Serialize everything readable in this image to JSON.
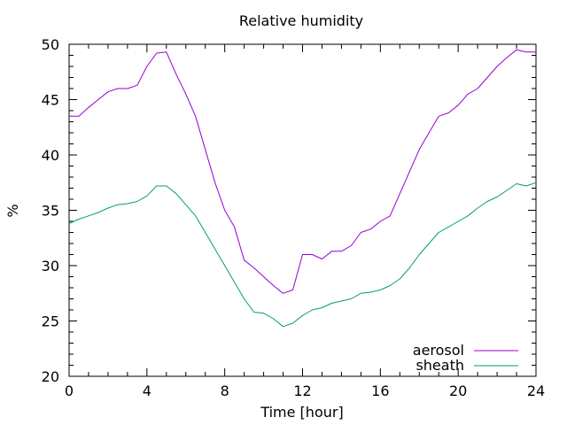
{
  "chart_data": {
    "type": "line",
    "title": "Relative humidity",
    "xlabel": "Time [hour]",
    "ylabel": "%",
    "xlim": [
      0,
      24
    ],
    "ylim": [
      20,
      50
    ],
    "xticks": [
      "0",
      "4",
      "8",
      "12",
      "16",
      "20",
      "24"
    ],
    "yticks": [
      "20",
      "25",
      "30",
      "35",
      "40",
      "45",
      "50"
    ],
    "grid": false,
    "legend_position": "bottom-right",
    "series": [
      {
        "name": "aerosol",
        "color": "#9400d3",
        "x": [
          0,
          0.5,
          1,
          1.5,
          2,
          2.5,
          3,
          3.5,
          4,
          4.5,
          5,
          5.5,
          6,
          6.5,
          7,
          7.5,
          8,
          8.5,
          9,
          9.5,
          10,
          10.5,
          11,
          11.5,
          12,
          12.5,
          13,
          13.5,
          14,
          14.5,
          15,
          15.5,
          16,
          16.5,
          17,
          17.5,
          18,
          18.5,
          19,
          19.5,
          20,
          20.5,
          21,
          21.5,
          22,
          22.5,
          23,
          23.5,
          24
        ],
        "y": [
          43.5,
          43.5,
          44.3,
          45.0,
          45.7,
          46.0,
          46.0,
          46.3,
          48.0,
          49.2,
          49.3,
          47.3,
          45.5,
          43.5,
          40.5,
          37.5,
          35.0,
          33.5,
          30.5,
          29.8,
          29.0,
          28.2,
          27.5,
          27.8,
          31.0,
          31.0,
          30.6,
          31.3,
          31.3,
          31.8,
          33.0,
          33.3,
          34.0,
          34.5,
          36.5,
          38.5,
          40.5,
          42.0,
          43.5,
          43.8,
          44.5,
          45.5,
          46.0,
          47.0,
          48.0,
          48.8,
          49.5,
          49.3,
          49.3
        ]
      },
      {
        "name": "sheath",
        "color": "#009e73",
        "x": [
          0,
          0.5,
          1,
          1.5,
          2,
          2.5,
          3,
          3.5,
          4,
          4.5,
          5,
          5.5,
          6,
          6.5,
          7,
          7.5,
          8,
          8.5,
          9,
          9.5,
          10,
          10.5,
          11,
          11.5,
          12,
          12.5,
          13,
          13.5,
          14,
          14.5,
          15,
          15.5,
          16,
          16.5,
          17,
          17.5,
          18,
          18.5,
          19,
          19.5,
          20,
          20.5,
          21,
          21.5,
          22,
          22.5,
          23,
          23.5,
          24
        ],
        "y": [
          33.8,
          34.2,
          34.5,
          34.8,
          35.2,
          35.5,
          35.6,
          35.8,
          36.3,
          37.2,
          37.2,
          36.5,
          35.5,
          34.5,
          33.0,
          31.5,
          30.0,
          28.5,
          27.0,
          25.8,
          25.7,
          25.2,
          24.5,
          24.8,
          25.5,
          26.0,
          26.2,
          26.6,
          26.8,
          27.0,
          27.5,
          27.6,
          27.8,
          28.2,
          28.8,
          29.8,
          31.0,
          32.0,
          33.0,
          33.5,
          34.0,
          34.5,
          35.2,
          35.8,
          36.2,
          36.8,
          37.4,
          37.2,
          37.5
        ]
      }
    ]
  }
}
